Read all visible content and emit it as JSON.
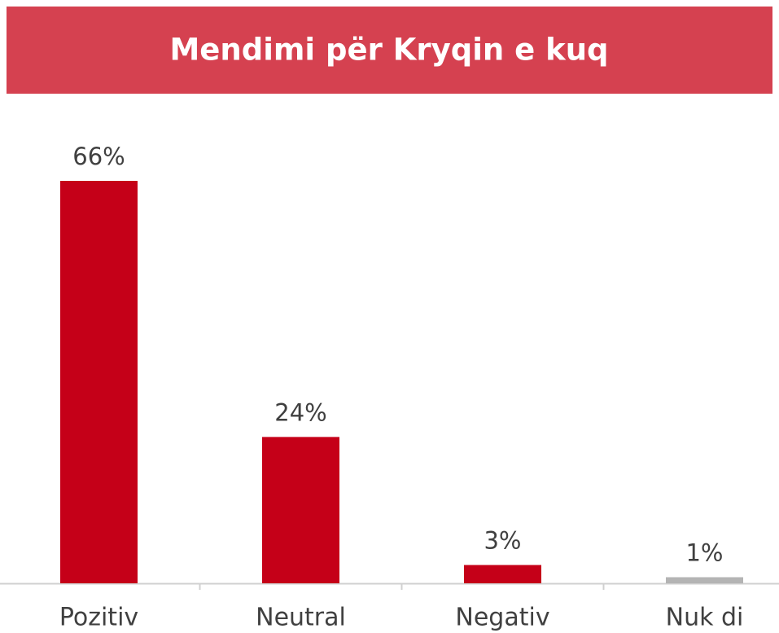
{
  "chart_data": {
    "type": "bar",
    "title": "Mendimi për Kryqin e kuq",
    "categories": [
      "Pozitiv",
      "Neutral",
      "Negativ",
      "Nuk di"
    ],
    "values": [
      66,
      24,
      3,
      1
    ],
    "value_labels": [
      "66%",
      "24%",
      "3%",
      "1%"
    ],
    "colors": [
      "#c50018",
      "#c50018",
      "#c50018",
      "#b4b4b4"
    ]
  }
}
